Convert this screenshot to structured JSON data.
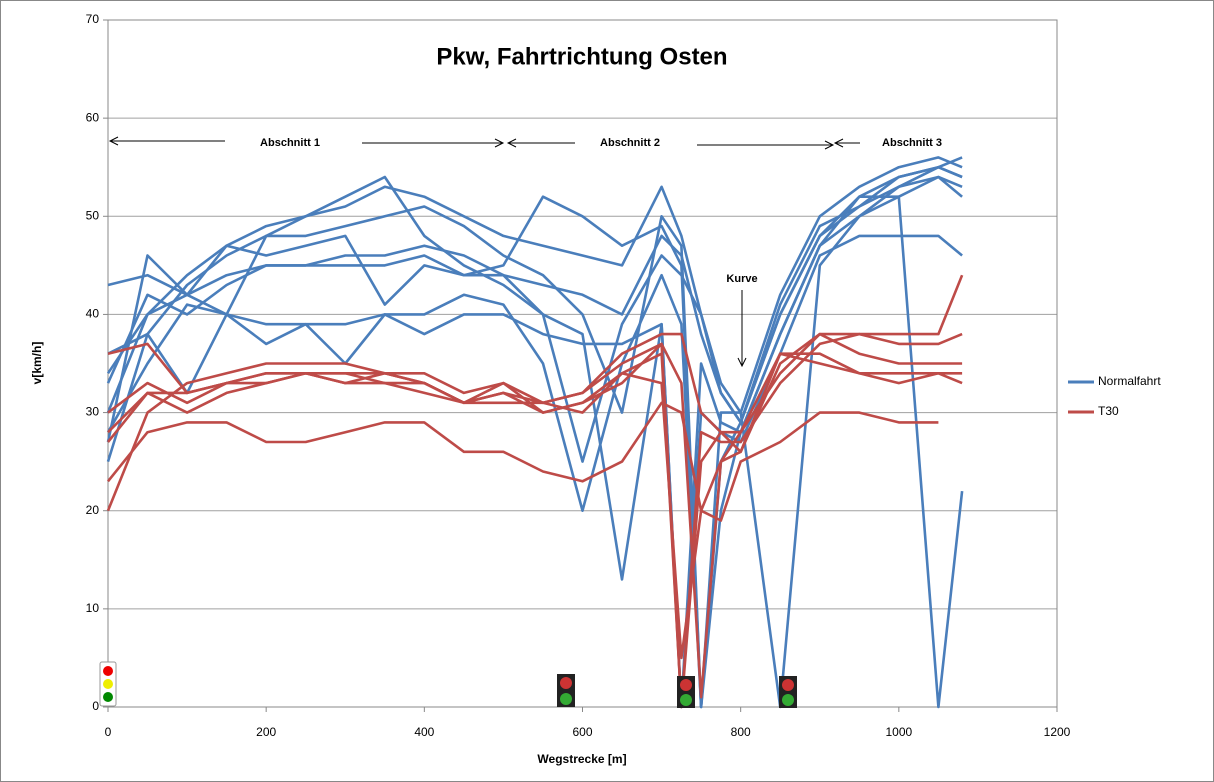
{
  "chart_data": {
    "type": "line",
    "title": "Pkw, Fahrtrichtung Osten",
    "x_label": "Wegstrecke  [m]",
    "y_label": "v[km/h]",
    "annotations": [
      "Abschnitt 1",
      "Abschnitt 2",
      "Abschnitt 3",
      "Kurve"
    ],
    "xlim": [
      0,
      1200
    ],
    "xticks": [
      0,
      200,
      400,
      600,
      800,
      1000,
      1200
    ],
    "ylim": [
      0,
      70
    ],
    "yticks": [
      0,
      10,
      20,
      30,
      40,
      50,
      60,
      70
    ],
    "grid": true,
    "legend": "right",
    "x": [
      0,
      50,
      100,
      150,
      200,
      250,
      300,
      350,
      400,
      450,
      500,
      550,
      600,
      650,
      700,
      725,
      750,
      775,
      800,
      850,
      900,
      950,
      1000,
      1050,
      1080
    ],
    "series": [
      {
        "name": "Normalfahrt",
        "color": "#4a7ebb",
        "runs": [
          [
            43,
            44,
            42,
            44,
            45,
            45,
            46,
            46,
            47,
            46,
            44,
            43,
            42,
            40,
            48,
            46,
            38,
            32,
            29,
            40,
            48,
            52,
            54,
            55,
            54
          ],
          [
            30,
            40,
            44,
            47,
            49,
            50,
            51,
            53,
            52,
            50,
            48,
            47,
            46,
            45,
            53,
            48,
            40,
            33,
            30,
            42,
            50,
            53,
            55,
            56,
            55
          ],
          [
            25,
            38,
            43,
            46,
            48,
            48,
            49,
            50,
            51,
            49,
            46,
            44,
            40,
            30,
            50,
            47,
            0,
            20,
            28,
            38,
            47,
            50,
            52,
            54,
            53
          ],
          [
            33,
            42,
            40,
            43,
            45,
            45,
            45,
            45,
            46,
            44,
            45,
            52,
            50,
            47,
            49,
            45,
            0,
            25,
            29,
            41,
            49,
            51,
            53,
            54,
            52
          ],
          [
            28,
            35,
            41,
            40,
            39,
            39,
            39,
            40,
            38,
            40,
            40,
            38,
            37,
            37,
            39,
            0,
            30,
            28,
            27,
            36,
            46,
            48,
            48,
            48,
            46
          ],
          [
            27,
            46,
            42,
            40,
            48,
            50,
            52,
            54,
            48,
            45,
            43,
            40,
            38,
            13,
            39,
            0,
            35,
            29,
            28,
            38,
            47,
            52,
            52,
            0,
            22
          ],
          [
            34,
            40,
            42,
            47,
            46,
            47,
            48,
            41,
            45,
            44,
            44,
            40,
            25,
            39,
            46,
            44,
            40,
            32,
            29,
            40,
            48,
            51,
            54,
            55,
            54
          ],
          [
            36,
            38,
            32,
            40,
            37,
            39,
            35,
            40,
            40,
            42,
            41,
            35,
            20,
            35,
            44,
            39,
            0,
            30,
            30,
            0,
            45,
            50,
            53,
            55,
            56
          ]
        ]
      },
      {
        "name": "T30",
        "color": "#be4b48",
        "runs": [
          [
            36,
            37,
            32,
            33,
            34,
            34,
            33,
            34,
            33,
            31,
            33,
            31,
            32,
            36,
            38,
            38,
            30,
            28,
            28,
            34,
            38,
            38,
            38,
            38,
            44
          ],
          [
            28,
            32,
            32,
            33,
            34,
            34,
            34,
            34,
            33,
            31,
            32,
            31,
            32,
            35,
            37,
            0,
            28,
            27,
            27,
            33,
            37,
            38,
            37,
            37,
            38
          ],
          [
            30,
            33,
            31,
            33,
            33,
            34,
            34,
            33,
            33,
            31,
            32,
            30,
            31,
            34,
            36,
            0,
            25,
            28,
            26,
            35,
            38,
            36,
            35,
            35,
            35
          ],
          [
            27,
            32,
            30,
            32,
            33,
            34,
            33,
            33,
            32,
            31,
            31,
            31,
            30,
            34,
            33,
            5,
            20,
            25,
            26,
            36,
            35,
            34,
            34,
            34,
            33
          ],
          [
            20,
            30,
            33,
            34,
            35,
            35,
            35,
            34,
            34,
            32,
            33,
            30,
            31,
            33,
            37,
            33,
            1,
            25,
            28,
            36,
            36,
            34,
            33,
            34,
            34
          ],
          [
            23,
            28,
            29,
            29,
            27,
            27,
            28,
            29,
            29,
            26,
            26,
            24,
            23,
            25,
            31,
            30,
            20,
            19,
            25,
            27,
            30,
            30,
            29,
            29,
            null
          ]
        ]
      }
    ]
  }
}
